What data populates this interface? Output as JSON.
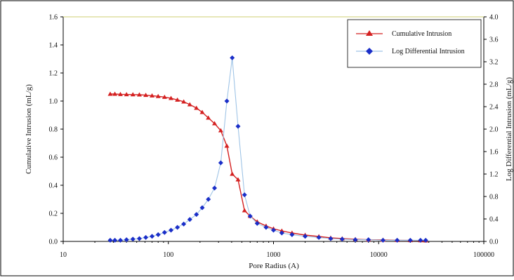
{
  "chart_data": {
    "type": "line",
    "title": "",
    "xlabel": "Pore Radius (A)",
    "ylabel_left": "Cumulative Intrusion (mL/g)",
    "ylabel_right": "Log Differential Intrusion (mL/g)",
    "x_scale": "log",
    "xlim": [
      10,
      100000
    ],
    "ylim_left": [
      0,
      1.6
    ],
    "ylim_right": [
      0,
      4.0
    ],
    "x_ticks": [
      10,
      100,
      1000,
      10000,
      100000
    ],
    "x_tick_labels": [
      "10",
      "100",
      "1000",
      "10000",
      "100000"
    ],
    "y_left_ticks": [
      "0.0",
      "0.2",
      "0.4",
      "0.6",
      "0.8",
      "1.0",
      "1.2",
      "1.4",
      "1.6"
    ],
    "y_right_ticks": [
      "0.0",
      "0.4",
      "0.8",
      "1.2",
      "1.6",
      "2.0",
      "2.4",
      "2.8",
      "3.2",
      "3.6",
      "4.0"
    ],
    "grid": false,
    "legend_position": "top-right",
    "series": [
      {
        "name": "Cumulative Intrusion",
        "axis": "left",
        "color": "#d42020",
        "marker": "triangle",
        "x": [
          28,
          31,
          35,
          40,
          46,
          53,
          61,
          70,
          80,
          92,
          106,
          122,
          140,
          160,
          185,
          210,
          240,
          275,
          315,
          360,
          405,
          460,
          530,
          600,
          700,
          850,
          1000,
          1200,
          1500,
          2000,
          2700,
          3500,
          4500,
          6000,
          8000,
          11000,
          15000,
          20000,
          25000,
          28000
        ],
        "values": [
          1.05,
          1.05,
          1.048,
          1.047,
          1.046,
          1.045,
          1.042,
          1.038,
          1.034,
          1.028,
          1.02,
          1.008,
          0.995,
          0.975,
          0.95,
          0.92,
          0.88,
          0.84,
          0.79,
          0.68,
          0.48,
          0.44,
          0.22,
          0.18,
          0.14,
          0.11,
          0.09,
          0.075,
          0.06,
          0.045,
          0.035,
          0.025,
          0.02,
          0.015,
          0.012,
          0.01,
          0.008,
          0.007,
          0.006,
          0.005
        ]
      },
      {
        "name": "Log Differential Intrusion",
        "axis": "right",
        "color": "#1a2ec8",
        "line_color": "#9fc4e6",
        "marker": "diamond",
        "x": [
          28,
          31,
          35,
          40,
          46,
          53,
          61,
          70,
          80,
          92,
          106,
          122,
          140,
          160,
          185,
          210,
          240,
          275,
          315,
          360,
          405,
          460,
          530,
          600,
          700,
          850,
          1000,
          1200,
          1500,
          2000,
          2700,
          3500,
          4500,
          6000,
          8000,
          11000,
          15000,
          20000,
          25000,
          28000
        ],
        "values": [
          0.02,
          0.02,
          0.02,
          0.03,
          0.04,
          0.05,
          0.07,
          0.09,
          0.12,
          0.16,
          0.2,
          0.25,
          0.31,
          0.39,
          0.48,
          0.6,
          0.75,
          0.95,
          1.4,
          2.5,
          3.27,
          2.05,
          0.83,
          0.45,
          0.32,
          0.25,
          0.2,
          0.15,
          0.12,
          0.09,
          0.07,
          0.05,
          0.04,
          0.03,
          0.03,
          0.02,
          0.02,
          0.02,
          0.02,
          0.02
        ]
      }
    ]
  }
}
